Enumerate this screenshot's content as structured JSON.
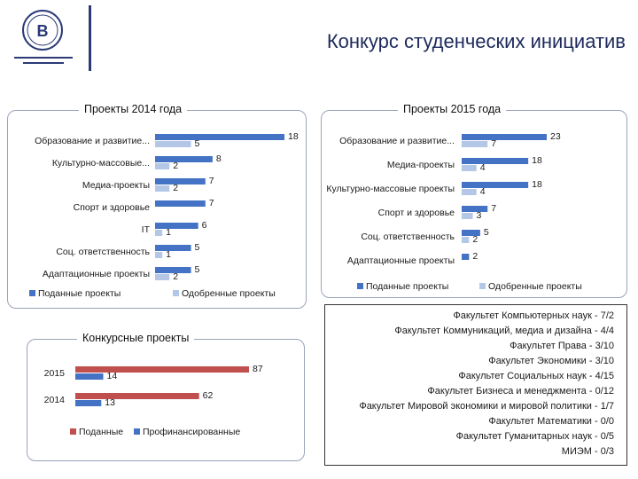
{
  "header": {
    "title": "Конкурс студенческих инициатив"
  },
  "colors": {
    "submitted": "#4472c4",
    "approved": "#b4c7e7",
    "grant_submitted": "#c0504d",
    "grant_funded": "#4472c4",
    "brand": "#2b3a77"
  },
  "chart_data": [
    {
      "type": "bar",
      "orientation": "horizontal",
      "title": "Проекты 2014 года",
      "categories": [
        "Образование и развитие...",
        "Культурно-массовые...",
        "Медиа-проекты",
        "Спорт и здоровье",
        "IT",
        "Соц. ответственность",
        "Адаптационные проекты"
      ],
      "series": [
        {
          "name": "Поданные проекты",
          "values": [
            18,
            8,
            7,
            7,
            6,
            5,
            5
          ]
        },
        {
          "name": "Одобренные проекты",
          "values": [
            5,
            2,
            2,
            null,
            1,
            1,
            2
          ]
        }
      ],
      "xlim": [
        0,
        18
      ],
      "legend": "bottom"
    },
    {
      "type": "bar",
      "orientation": "horizontal",
      "title": "Проекты 2015 года",
      "categories": [
        "Образование и развитие...",
        "Медиа-проекты",
        "Культурно-массовые проекты",
        "Спорт и здоровье",
        "Соц. ответственность",
        "Адаптационные проекты"
      ],
      "series": [
        {
          "name": "Поданные проекты",
          "values": [
            23,
            18,
            18,
            7,
            5,
            2
          ]
        },
        {
          "name": "Одобренные проекты",
          "values": [
            7,
            4,
            4,
            3,
            2,
            null
          ]
        }
      ],
      "xlim": [
        0,
        23
      ],
      "legend": "bottom"
    },
    {
      "type": "bar",
      "orientation": "horizontal",
      "title": "Конкурсные проекты",
      "categories": [
        "2015",
        "2014"
      ],
      "series": [
        {
          "name": "Поданные",
          "values": [
            87,
            62
          ]
        },
        {
          "name": "Профинансированные",
          "values": [
            14,
            13
          ]
        }
      ],
      "xlim": [
        0,
        87
      ],
      "legend": "bottom"
    }
  ],
  "faculties": [
    "Факультет Компьютерных наук - 7/2",
    "Факультет Коммуникаций, медиа и дизайна - 4/4",
    "Факультет Права - 3/10",
    "Факультет Экономики - 3/10",
    "Факультет Социальных наук - 4/15",
    "Факультет Бизнеса и менеджмента - 0/12",
    "Факультет Мировой экономики и мировой политики - 1/7",
    "Факультет Математики - 0/0",
    "Факультет Гуманитарных наук - 0/5",
    "МИЭМ - 0/3"
  ]
}
